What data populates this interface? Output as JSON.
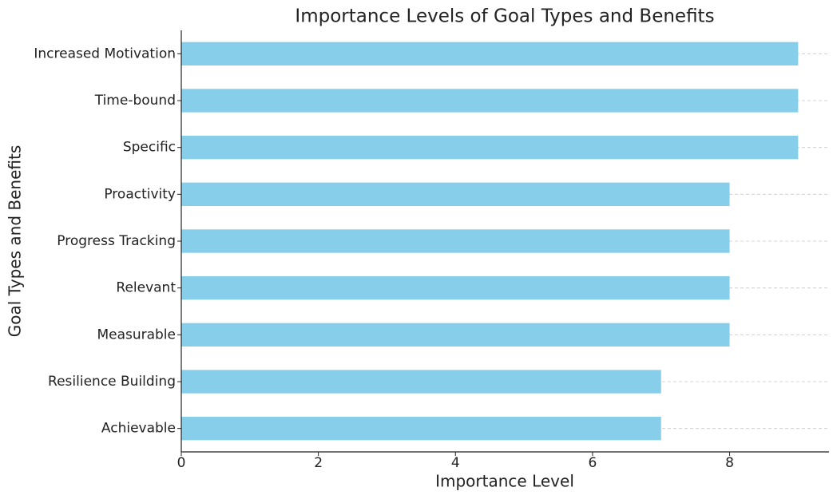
{
  "chart_data": {
    "type": "barh",
    "title": "Importance Levels of Goal Types and Benefits",
    "x_label": "Importance Level",
    "y_label": "Goal Types and Benefits",
    "categories": [
      "Achievable",
      "Resilience Building",
      "Measurable",
      "Relevant",
      "Progress Tracking",
      "Proactivity",
      "Specific",
      "Time-bound",
      "Increased Motivation"
    ],
    "values": [
      7,
      7,
      8,
      8,
      8,
      8,
      9,
      9,
      9
    ],
    "color": "#87ceeb",
    "xlim": [
      0,
      9.45
    ],
    "xticks": [
      0,
      2,
      4,
      6,
      8
    ],
    "grid": true
  }
}
